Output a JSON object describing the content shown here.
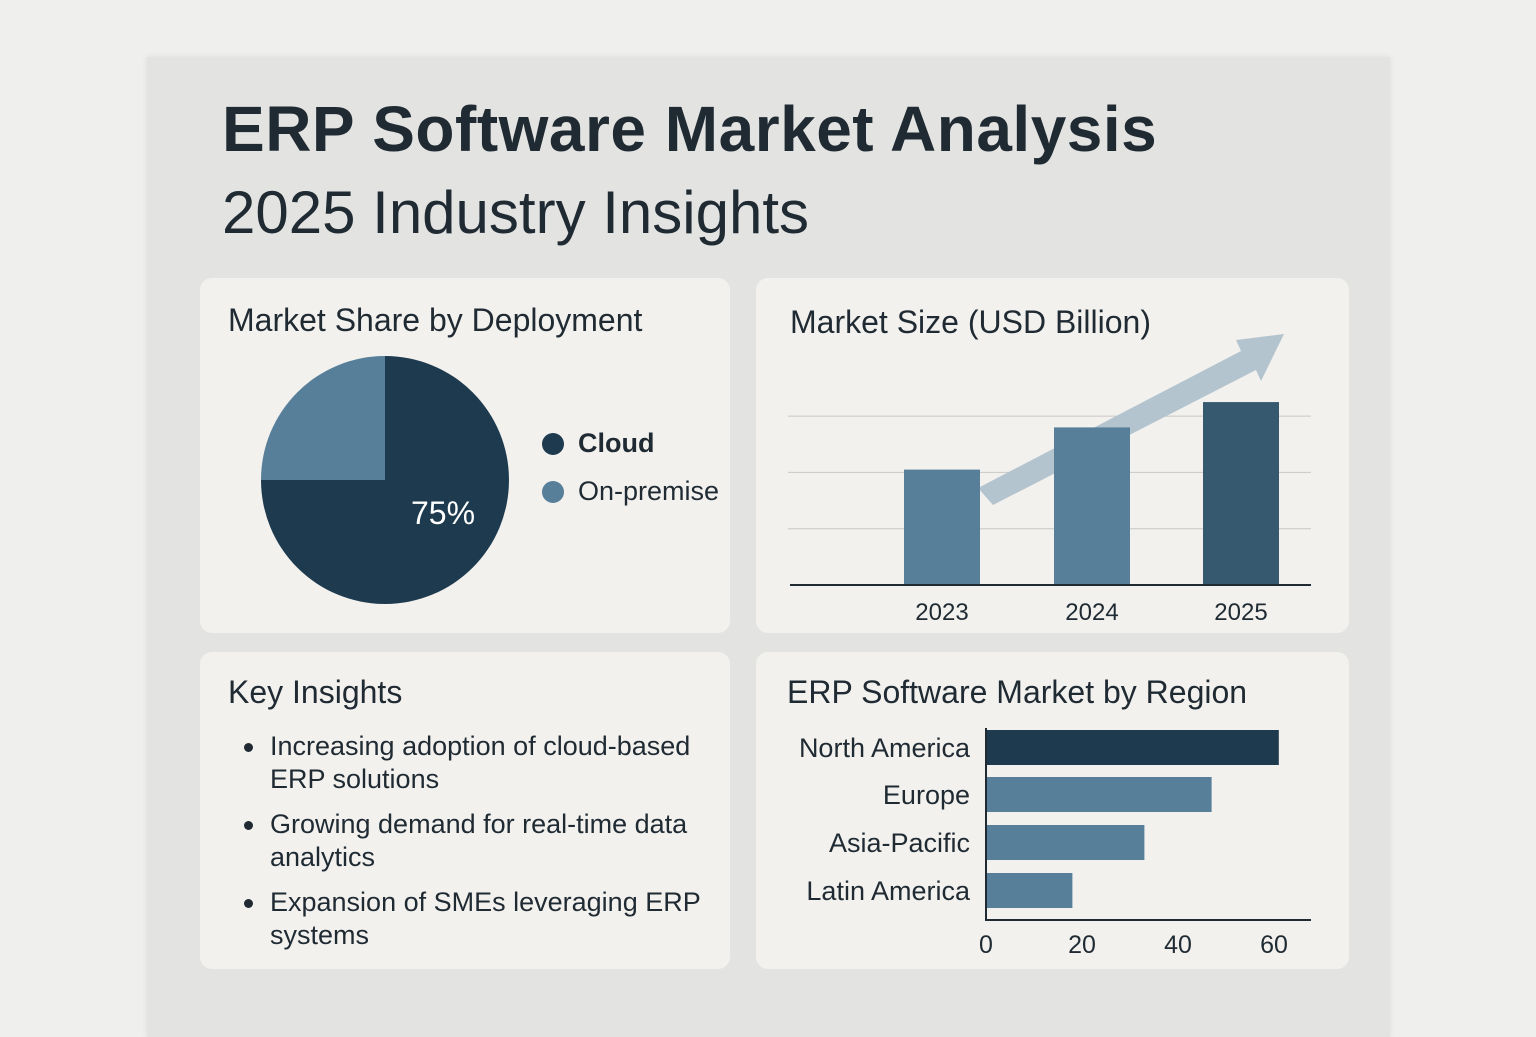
{
  "header": {
    "title": "ERP Software Market Analysis",
    "subtitle": "2025 Industry Insights"
  },
  "colors": {
    "dark": "#1e3a4f",
    "mid": "#587f99",
    "bar2025": "#37596f",
    "arrow": "#b4c4cf"
  },
  "insights": {
    "title": "Key Insights",
    "items": [
      "Increasing adoption of cloud-based ERP solutions",
      "Growing demand for real-time data analytics",
      "Expansion of SMEs leveraging ERP systems"
    ]
  },
  "chart_data": [
    {
      "type": "pie",
      "title": "Market Share by Deployment",
      "labels": [
        "Cloud",
        "On-premise"
      ],
      "values": [
        75,
        25
      ],
      "data_label": "75%",
      "legend_position": "right"
    },
    {
      "type": "bar",
      "title": "Market Size (USD Billion)",
      "categories": [
        "2023",
        "2024",
        "2025"
      ],
      "values": [
        41,
        56,
        65
      ],
      "ylim": [
        0,
        70
      ],
      "grid": true,
      "annotation": "upward trend arrow"
    },
    {
      "type": "bar",
      "orientation": "horizontal",
      "title": "ERP Software Market by Region",
      "categories": [
        "North America",
        "Europe",
        "Asia-Pacific",
        "Latin America"
      ],
      "values": [
        61,
        47,
        33,
        18
      ],
      "xlim": [
        0,
        67
      ],
      "xticks": [
        "0",
        "20",
        "40",
        "60"
      ]
    }
  ]
}
